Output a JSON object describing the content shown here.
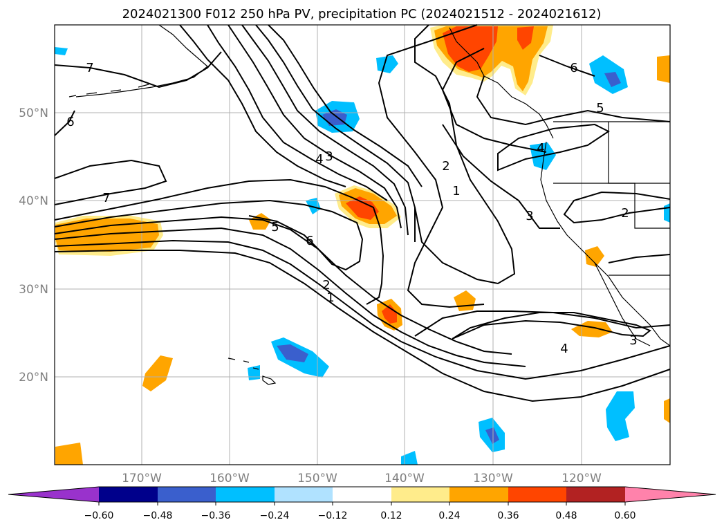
{
  "title": "2024021300 F012 250 hPa PV, precipitation PC (2024021512 - 2024021612)",
  "map": {
    "lat_labels": [
      "50°N",
      "40°N",
      "30°N",
      "20°N"
    ],
    "lon_labels": [
      "170°W",
      "160°W",
      "150°W",
      "140°W",
      "130°W",
      "120°W"
    ],
    "contour_labels": [
      "7",
      "6",
      "7",
      "5",
      "6",
      "4",
      "3",
      "2",
      "1",
      "2",
      "1",
      "3",
      "5",
      "6",
      "4",
      "4",
      "3",
      "2"
    ]
  },
  "colorbar": {
    "ticks": [
      "−0.60",
      "−0.48",
      "−0.36",
      "−0.24",
      "−0.12",
      "0.12",
      "0.24",
      "0.36",
      "0.48",
      "0.60"
    ],
    "colors": [
      "#9932cc",
      "#00008b",
      "#3a5fcd",
      "#00bfff",
      "#b0e2ff",
      "#ffffff",
      "#ffec8b",
      "#ffa500",
      "#ff4500",
      "#b22222",
      "#ff82ab"
    ]
  }
}
